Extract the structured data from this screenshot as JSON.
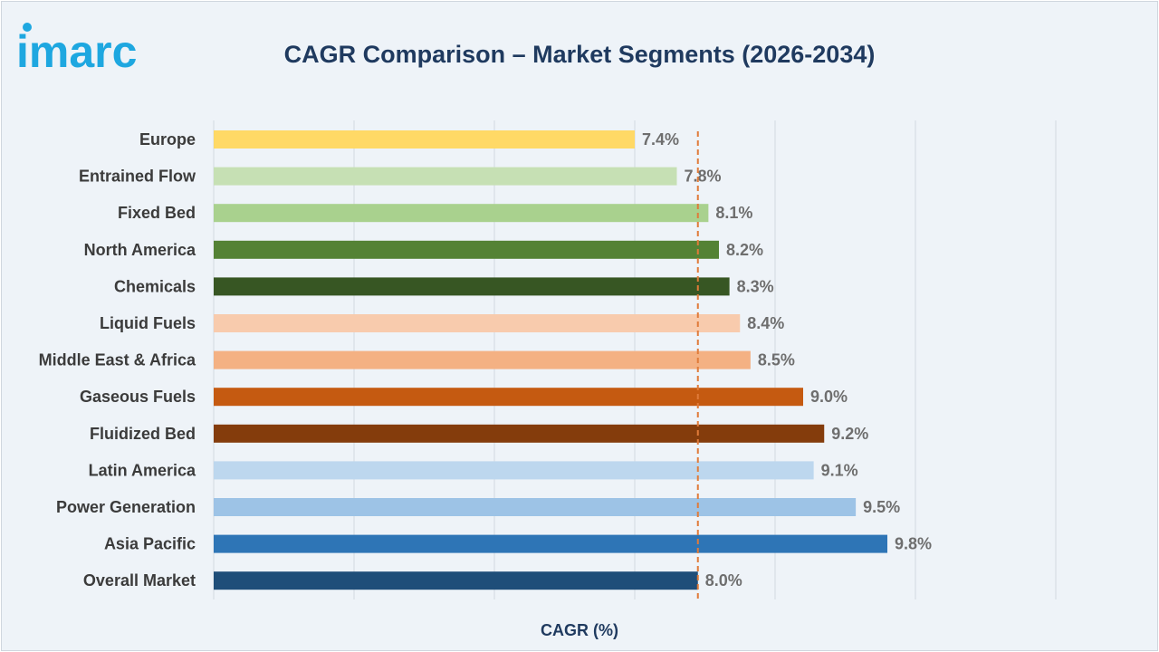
{
  "logo": {
    "text": "imarc",
    "color": "#1ea7e0"
  },
  "chart_data": {
    "type": "bar",
    "orientation": "horizontal",
    "title": "CAGR Comparison – Market Segments (2026-2034)",
    "xlabel": "CAGR (%)",
    "ylabel": "",
    "xlim": [
      3.4,
      11.4
    ],
    "grid": true,
    "reference_line": {
      "value": 8.0,
      "style": "dashed",
      "color": "#e07b39"
    },
    "categories": [
      "Europe",
      "Entrained Flow",
      "Fixed Bed",
      "North America",
      "Chemicals",
      "Liquid Fuels",
      "Middle East & Africa",
      "Gaseous Fuels",
      "Fluidized Bed",
      "Latin America",
      "Power Generation",
      "Asia Pacific",
      "Overall Market"
    ],
    "values": [
      7.4,
      7.8,
      8.1,
      8.2,
      8.3,
      8.4,
      8.5,
      9.0,
      9.2,
      9.1,
      9.5,
      9.8,
      8.0
    ],
    "value_labels": [
      "7.4%",
      "7.8%",
      "8.1%",
      "8.2%",
      "8.3%",
      "8.4%",
      "8.5%",
      "9.0%",
      "9.2%",
      "9.1%",
      "9.5%",
      "9.8%",
      "8.0%"
    ],
    "colors": [
      "#ffd966",
      "#c6e0b4",
      "#a9d18e",
      "#548235",
      "#375623",
      "#f8cbad",
      "#f4b183",
      "#c55a11",
      "#843c0c",
      "#bdd7ee",
      "#9dc3e6",
      "#2e75b6",
      "#1f4e79"
    ]
  }
}
